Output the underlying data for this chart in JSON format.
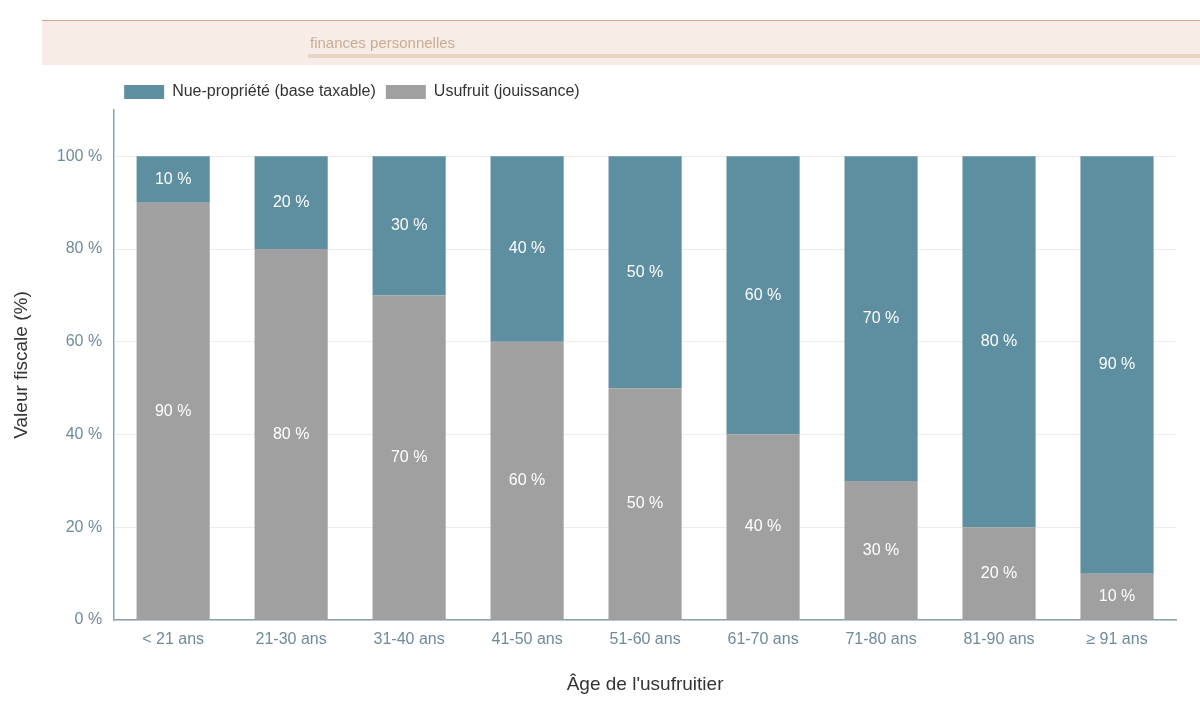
{
  "chart_data": {
    "type": "bar",
    "subtitle": "finances personnelles",
    "xlabel": "Âge de l'usufruitier",
    "ylabel": "Valeur fiscale (%)",
    "categories": [
      "< 21 ans",
      "21-30 ans",
      "31-40 ans",
      "41-50 ans",
      "51-60 ans",
      "61-70 ans",
      "71-80 ans",
      "81-90 ans",
      "≥ 91 ans"
    ],
    "series": [
      {
        "name": "Usufruit (jouissance)",
        "color": "#a0a0a0",
        "values": [
          90,
          80,
          70,
          60,
          50,
          40,
          30,
          20,
          10
        ],
        "value_labels": [
          "90 %",
          "80 %",
          "70 %",
          "60 %",
          "50 %",
          "40 %",
          "30 %",
          "20 %",
          "10 %"
        ]
      },
      {
        "name": "Nue-propriété (base taxable)",
        "color": "#5d8fa0",
        "values": [
          10,
          20,
          30,
          40,
          50,
          60,
          70,
          80,
          90
        ],
        "value_labels": [
          "10 %",
          "20 %",
          "30 %",
          "40 %",
          "50 %",
          "60 %",
          "70 %",
          "80 %",
          "90 %"
        ]
      }
    ],
    "stacked": true,
    "ylim": [
      0,
      110
    ],
    "yticks": [
      {
        "value": 0,
        "label": "0 %"
      },
      {
        "value": 20,
        "label": "20 %"
      },
      {
        "value": 40,
        "label": "40 %"
      },
      {
        "value": 60,
        "label": "60 %"
      },
      {
        "value": 80,
        "label": "80 %"
      },
      {
        "value": 100,
        "label": "100 %"
      }
    ],
    "grid": "y",
    "legend": "top left"
  }
}
